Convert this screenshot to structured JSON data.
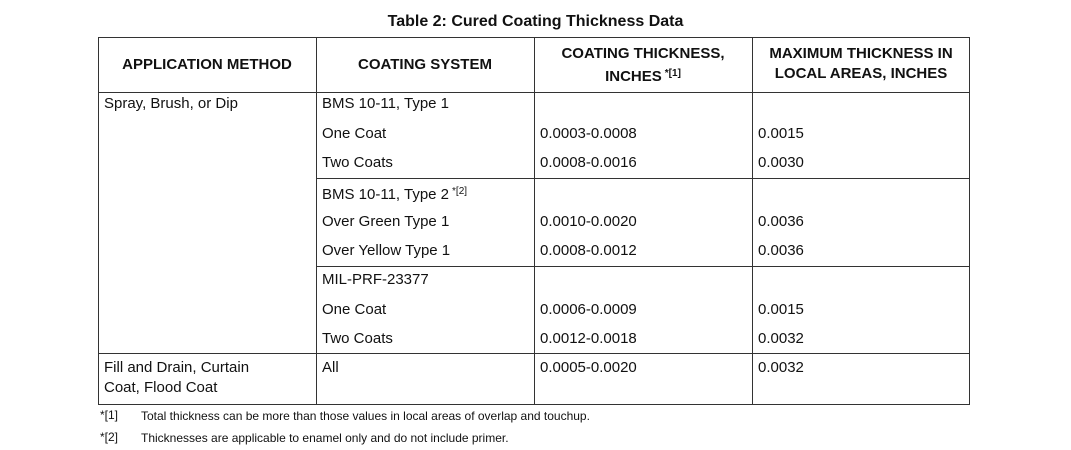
{
  "title": "Table 2:  Cured Coating Thickness Data",
  "table": {
    "headers": [
      {
        "lines": [
          "APPLICATION METHOD"
        ]
      },
      {
        "lines": [
          "COATING SYSTEM"
        ]
      },
      {
        "lines": [
          "COATING THICKNESS,",
          "INCHES"
        ],
        "note": "*[1]"
      },
      {
        "lines": [
          "MAXIMUM THICKNESS IN",
          "LOCAL AREAS, INCHES"
        ]
      }
    ],
    "methods": [
      {
        "lines": [
          "Spray, Brush, or Dip"
        ]
      },
      {
        "lines": [
          "Fill and Drain, Curtain",
          "Coat, Flood Coat"
        ]
      }
    ],
    "systems": [
      {
        "heading": "BMS 10-11, Type 1",
        "rows": [
          [
            "One Coat",
            "0.0003-0.0008",
            "0.0015"
          ],
          [
            "Two Coats",
            "0.0008-0.0016",
            "0.0030"
          ]
        ]
      },
      {
        "heading": "BMS 10-11, Type 2",
        "note": "*[2]",
        "rows": [
          [
            "Over Green Type 1",
            "0.0010-0.0020",
            "0.0036"
          ],
          [
            "Over Yellow Type 1",
            "0.0008-0.0012",
            "0.0036"
          ]
        ]
      },
      {
        "heading": "MIL-PRF-23377",
        "rows": [
          [
            "One Coat",
            "0.0006-0.0009",
            "0.0015"
          ],
          [
            "Two Coats",
            "0.0012-0.0018",
            "0.0032"
          ]
        ]
      },
      {
        "heading": "All",
        "thickness": "0.0005-0.0020",
        "max": "0.0032"
      }
    ]
  },
  "footnotes": [
    {
      "mark": "*[1]",
      "text": "Total thickness can be more than those values in local areas of overlap and touchup."
    },
    {
      "mark": "*[2]",
      "text": "Thicknesses are applicable to enamel only and do not include primer."
    }
  ]
}
